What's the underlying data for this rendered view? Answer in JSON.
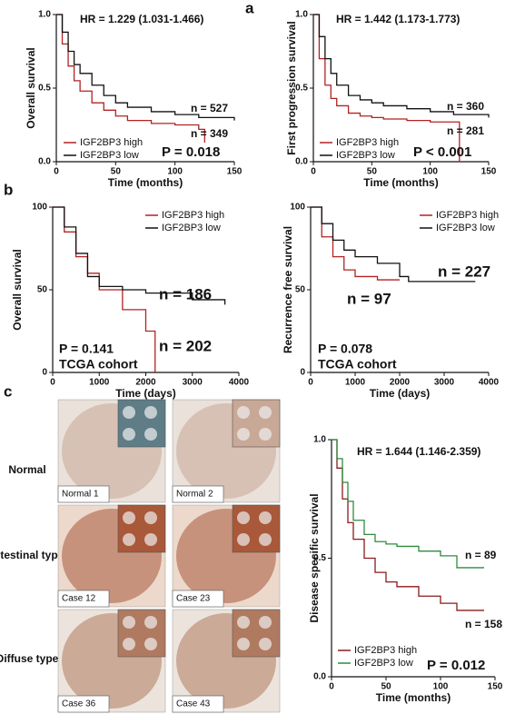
{
  "chart_data": [
    {
      "type": "line",
      "title": "HR = 1.229 (1.031-1.466)",
      "xlabel": "Time (months)",
      "ylabel": "Overall survival",
      "x": [
        0,
        5,
        10,
        15,
        20,
        30,
        40,
        50,
        60,
        80,
        100,
        120,
        125,
        150
      ],
      "series": [
        {
          "name": "IGF2BP3 high",
          "color": "#b22222",
          "values": [
            1,
            0.8,
            0.65,
            0.55,
            0.48,
            0.4,
            0.35,
            0.31,
            0.28,
            0.26,
            0.25,
            0.22,
            0.13,
            null
          ]
        },
        {
          "name": "IGF2BP3 low",
          "color": "#111111",
          "values": [
            1,
            0.88,
            0.75,
            0.66,
            0.6,
            0.52,
            0.45,
            0.4,
            0.37,
            0.34,
            0.32,
            0.3,
            0.3,
            0.28
          ]
        }
      ],
      "annotations": [
        "n = 527",
        "n = 349",
        "P = 0.018"
      ],
      "xlim": [
        0,
        150
      ],
      "xticks": [
        0,
        50,
        100,
        150
      ],
      "ylim": [
        0,
        1
      ],
      "yticks": [
        {
          "value": 0,
          "label": "0.0"
        },
        {
          "value": 0.5,
          "label": "0.5"
        },
        {
          "value": 1,
          "label": "1.0"
        }
      ],
      "legend": "bottom-left"
    },
    {
      "type": "line",
      "title": "HR = 1.442 (1.173-1.773)",
      "xlabel": "Time (months)",
      "ylabel": "First progression survival",
      "x": [
        0,
        5,
        10,
        15,
        20,
        30,
        40,
        50,
        60,
        80,
        100,
        120,
        125,
        150
      ],
      "series": [
        {
          "name": "IGF2BP3 high",
          "color": "#b22222",
          "values": [
            1,
            0.7,
            0.52,
            0.43,
            0.38,
            0.33,
            0.31,
            0.3,
            0.29,
            0.28,
            0.27,
            0.27,
            0,
            null
          ]
        },
        {
          "name": "IGF2BP3 low",
          "color": "#111111",
          "values": [
            1,
            0.85,
            0.7,
            0.6,
            0.52,
            0.45,
            0.42,
            0.4,
            0.38,
            0.36,
            0.34,
            0.32,
            0.32,
            0.3
          ]
        }
      ],
      "annotations": [
        "n = 360",
        "n = 281",
        "P < 0.001"
      ],
      "xlim": [
        0,
        150
      ],
      "xticks": [
        0,
        50,
        100,
        150
      ],
      "ylim": [
        0,
        1
      ],
      "yticks": [
        {
          "value": 0,
          "label": "0.0"
        },
        {
          "value": 0.5,
          "label": "0.5"
        },
        {
          "value": 1,
          "label": "1.0"
        }
      ],
      "legend": "bottom-left"
    },
    {
      "type": "line",
      "xlabel": "Time (days)",
      "ylabel": "Overall survival",
      "x": [
        0,
        250,
        500,
        750,
        1000,
        1500,
        2000,
        2100,
        2200,
        3000,
        3700
      ],
      "series": [
        {
          "name": "IGF2BP3 high",
          "color": "#b22222",
          "values": [
            100,
            85,
            70,
            60,
            50,
            38,
            25,
            25,
            0,
            null,
            null
          ]
        },
        {
          "name": "IGF2BP3 low",
          "color": "#111111",
          "values": [
            100,
            88,
            72,
            58,
            52,
            50,
            48,
            48,
            48,
            44,
            41
          ]
        }
      ],
      "annotations": [
        "n = 186",
        "n = 202",
        "P = 0.141",
        "TCGA cohort"
      ],
      "xlim": [
        0,
        4000
      ],
      "xticks": [
        0,
        1000,
        2000,
        3000,
        4000
      ],
      "ylim": [
        0,
        100
      ],
      "yticks": [
        0,
        50,
        100
      ],
      "legend": "top-right"
    },
    {
      "type": "line",
      "xlabel": "Time (days)",
      "ylabel": "Recurrence free survival",
      "x": [
        0,
        250,
        500,
        750,
        1000,
        1500,
        2000,
        2200,
        3000,
        3700
      ],
      "series": [
        {
          "name": "IGF2BP3 high",
          "color": "#b22222",
          "values": [
            100,
            82,
            70,
            62,
            58,
            56,
            56,
            null,
            null,
            null
          ]
        },
        {
          "name": "IGF2BP3 low",
          "color": "#111111",
          "values": [
            100,
            90,
            80,
            74,
            70,
            66,
            58,
            55,
            55,
            55
          ]
        }
      ],
      "annotations": [
        "n = 227",
        "n = 97",
        "P = 0.078",
        "TCGA cohort"
      ],
      "xlim": [
        0,
        4000
      ],
      "xticks": [
        0,
        1000,
        2000,
        3000,
        4000
      ],
      "ylim": [
        0,
        100
      ],
      "yticks": [
        0,
        50,
        100
      ],
      "legend": "top-right"
    },
    {
      "type": "line",
      "title": "HR = 1.644 (1.146-2.359)",
      "xlabel": "Time (months)",
      "ylabel": "Disease specific survival",
      "x": [
        0,
        5,
        10,
        15,
        20,
        30,
        40,
        50,
        60,
        80,
        100,
        115,
        140
      ],
      "series": [
        {
          "name": "IGF2BP3 high",
          "color": "#8b1a1a",
          "values": [
            1,
            0.88,
            0.75,
            0.65,
            0.58,
            0.5,
            0.44,
            0.4,
            0.38,
            0.34,
            0.31,
            0.28,
            0.28
          ]
        },
        {
          "name": "IGF2BP3 low",
          "color": "#2e8b3e",
          "values": [
            1,
            0.92,
            0.82,
            0.74,
            0.66,
            0.6,
            0.57,
            0.56,
            0.55,
            0.53,
            0.51,
            0.46,
            0.46
          ]
        }
      ],
      "annotations": [
        "n = 89",
        "n = 158",
        "P = 0.012"
      ],
      "xlim": [
        0,
        150
      ],
      "xticks": [
        0,
        50,
        100,
        150
      ],
      "ylim": [
        0,
        1
      ],
      "yticks": [
        {
          "value": 0,
          "label": "0.0"
        },
        {
          "value": 0.5,
          "label": "0.5"
        },
        {
          "value": 1,
          "label": "1.0"
        }
      ],
      "legend": "bottom-left"
    }
  ],
  "panels": [
    "a",
    "b",
    "c"
  ],
  "histology": {
    "rows": [
      "Normal",
      "Intestinal type",
      "Diffuse type"
    ],
    "captions": [
      "Normal 1",
      "Normal 2",
      "Case 12",
      "Case 23",
      "Case 36",
      "Case 43"
    ]
  }
}
